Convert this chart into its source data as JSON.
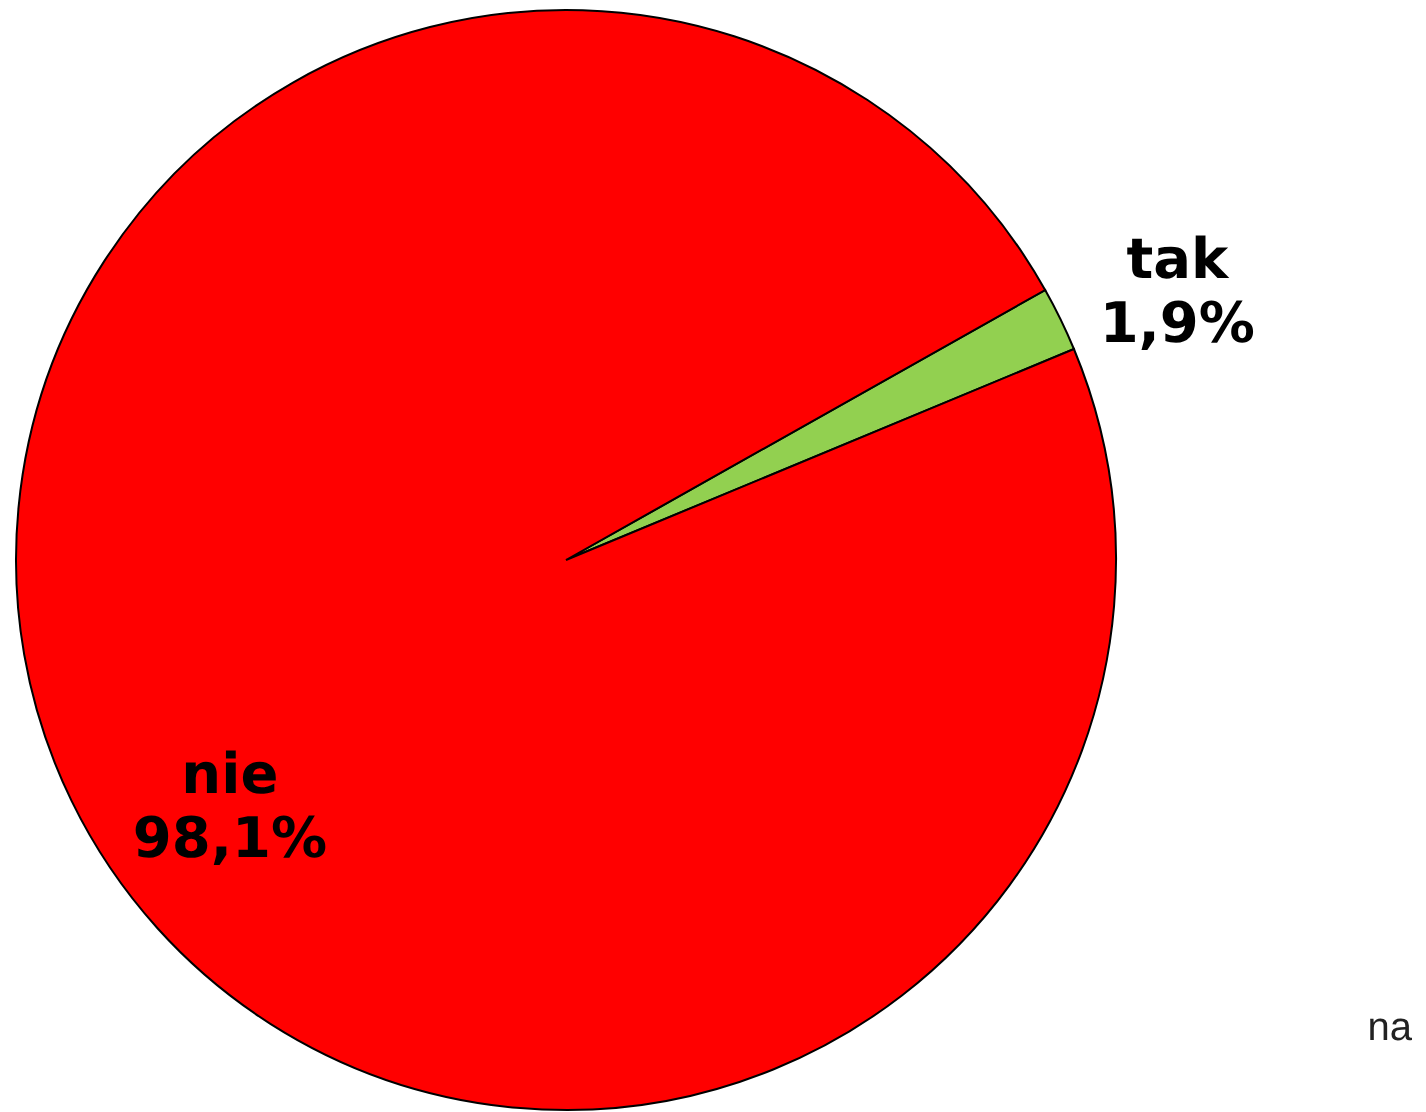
{
  "chart_data": {
    "type": "pie",
    "categories": [
      "tak",
      "nie"
    ],
    "values": [
      1.9,
      98.1
    ],
    "value_labels": [
      "1,9%",
      "98,1%"
    ],
    "colors": [
      "#92d050",
      "#ff0000"
    ],
    "annotations": [
      "na"
    ]
  }
}
